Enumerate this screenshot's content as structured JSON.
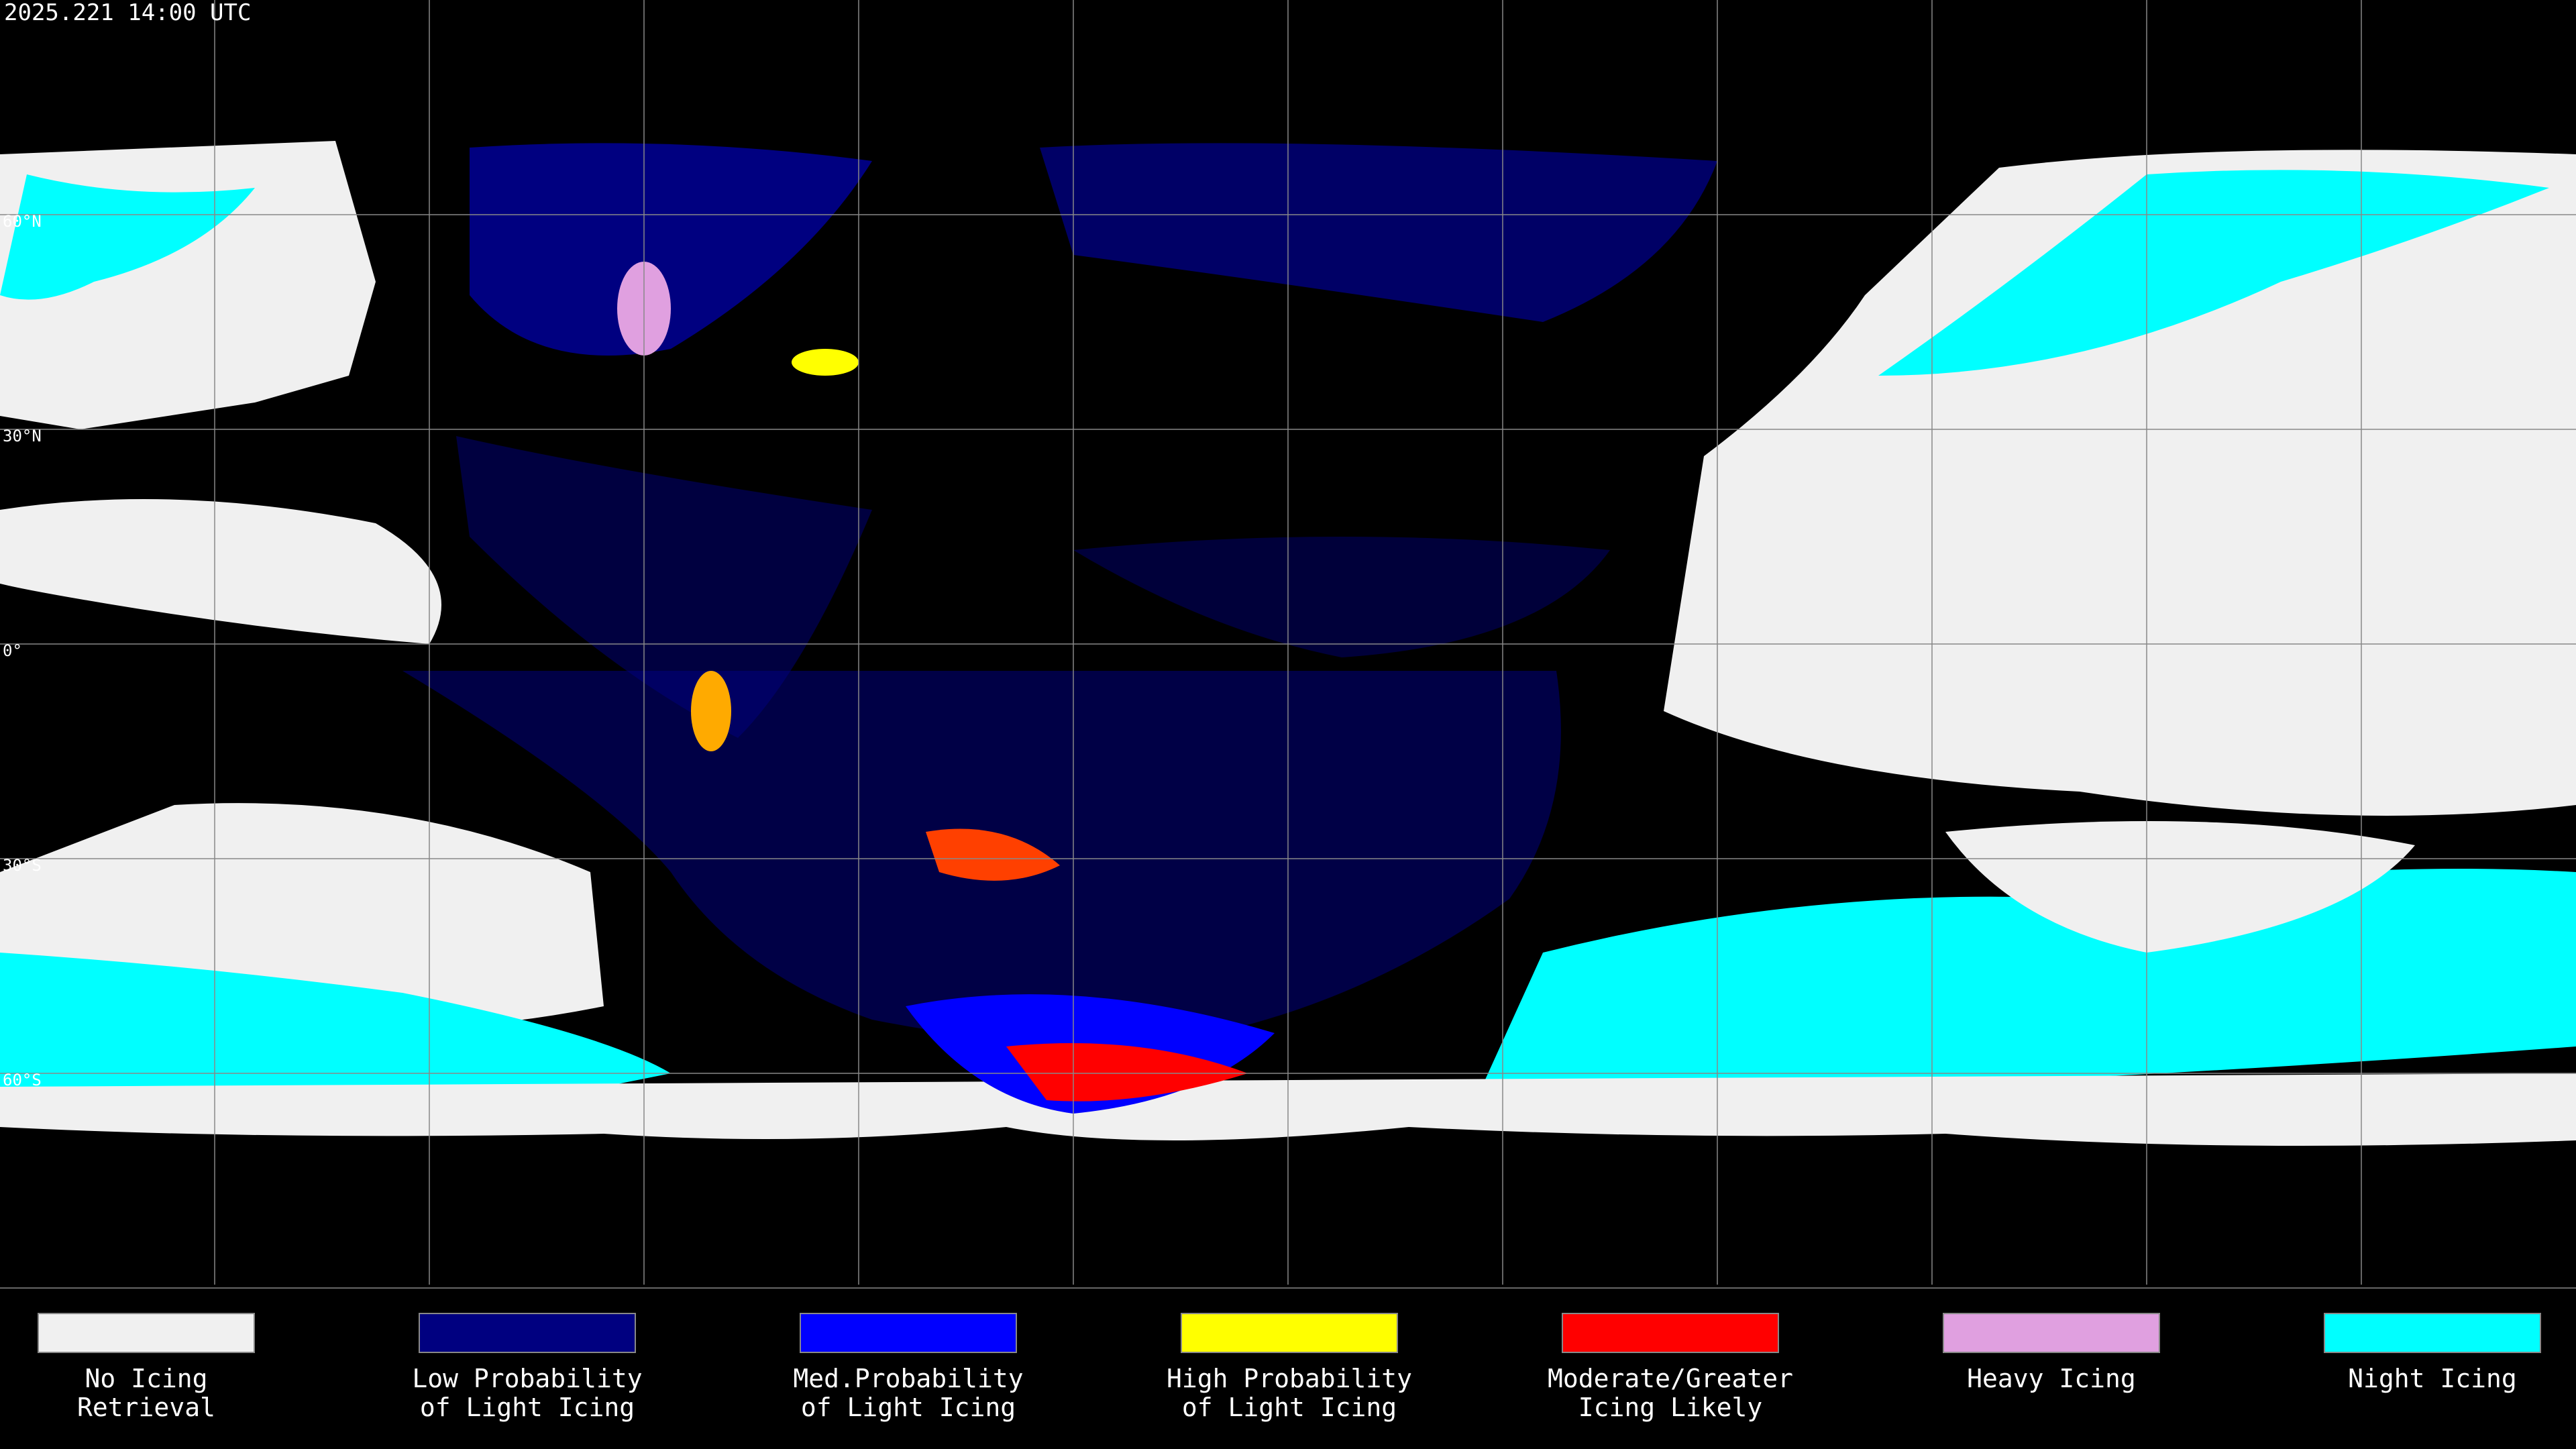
{
  "header": {
    "timestamp": "2025.221 14:00 UTC"
  },
  "grid": {
    "lat_labels": [
      "60°N",
      "30°N",
      "0°",
      "30°S",
      "60°S"
    ]
  },
  "legend": {
    "items": [
      {
        "lines": [
          "No Icing",
          "Retrieval"
        ],
        "color": "#f0f0f0"
      },
      {
        "lines": [
          "Low Probability",
          "of Light Icing"
        ],
        "color": "#000080"
      },
      {
        "lines": [
          "Med.Probability",
          "of Light Icing"
        ],
        "color": "#0000ff"
      },
      {
        "lines": [
          "High Probability",
          "of Light Icing"
        ],
        "color": "#ffff00"
      },
      {
        "lines": [
          "Moderate/Greater",
          "Icing Likely"
        ],
        "color": "#ff0000"
      },
      {
        "lines": [
          "Heavy Icing"
        ],
        "color": "#e0a0e0"
      },
      {
        "lines": [
          "Night Icing"
        ],
        "color": "#00ffff"
      }
    ]
  }
}
